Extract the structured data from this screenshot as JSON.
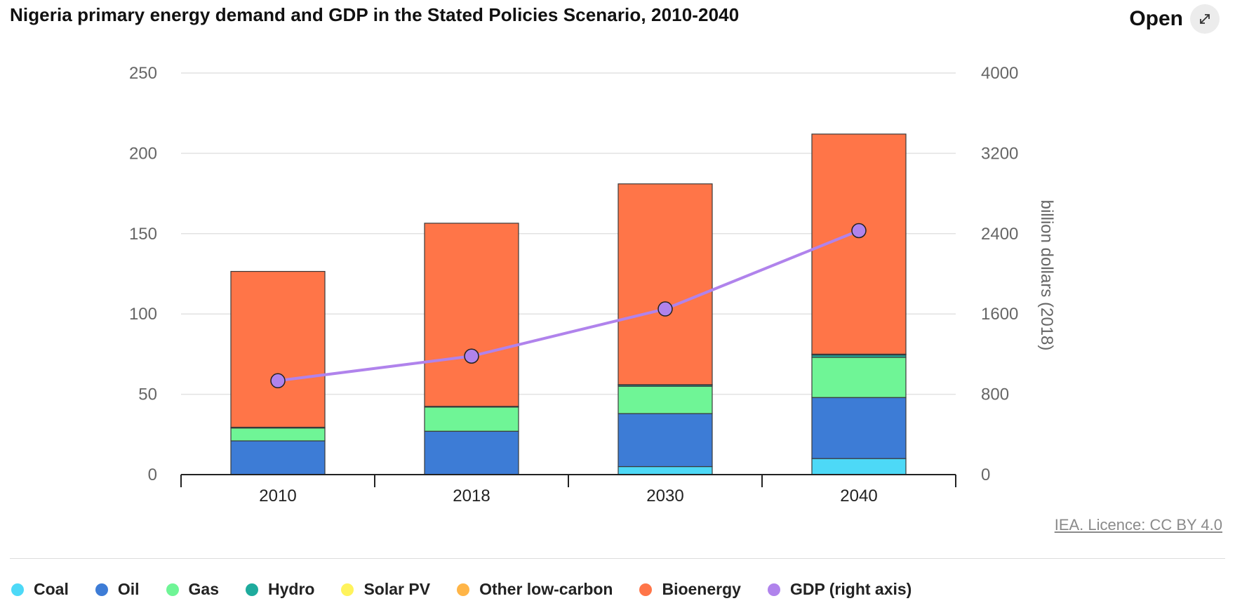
{
  "header": {
    "title": "Nigeria primary energy demand and GDP in the Stated Policies Scenario, 2010-2040",
    "open_label": "Open"
  },
  "footer": {
    "licence": "IEA. Licence: CC BY 4.0"
  },
  "legend": [
    {
      "label": "Coal",
      "color": "#4dd9f7"
    },
    {
      "label": "Oil",
      "color": "#3d7cd6"
    },
    {
      "label": "Gas",
      "color": "#6ff596"
    },
    {
      "label": "Hydro",
      "color": "#1eab9d"
    },
    {
      "label": "Solar PV",
      "color": "#fff35c"
    },
    {
      "label": "Other low-carbon",
      "color": "#ffb547"
    },
    {
      "label": "Bioenergy",
      "color": "#ff7548"
    },
    {
      "label": "GDP (right axis)",
      "color": "#b083ec"
    }
  ],
  "chart_data": {
    "type": "bar",
    "stacked": true,
    "title": "Nigeria primary energy demand and GDP in the Stated Policies Scenario, 2010-2040",
    "categories": [
      "2010",
      "2018",
      "2030",
      "2040"
    ],
    "y_ticks": [
      "0",
      "50",
      "100",
      "150",
      "200",
      "250"
    ],
    "y2_ticks": [
      "0",
      "800",
      "1600",
      "2400",
      "3200",
      "4000"
    ],
    "ylim": [
      0,
      250
    ],
    "y2lim": [
      0,
      4000
    ],
    "y2label": "billion dollars (2018)",
    "series": [
      {
        "name": "Coal",
        "color": "#4dd9f7",
        "values": [
          0,
          0,
          5,
          10
        ]
      },
      {
        "name": "Oil",
        "color": "#3d7cd6",
        "values": [
          21,
          27,
          33,
          38
        ]
      },
      {
        "name": "Gas",
        "color": "#6ff596",
        "values": [
          8,
          15,
          17,
          25
        ]
      },
      {
        "name": "Hydro",
        "color": "#1eab9d",
        "values": [
          0.5,
          0.5,
          0.8,
          1.5
        ]
      },
      {
        "name": "Solar PV",
        "color": "#fff35c",
        "values": [
          0,
          0,
          0.1,
          0.3
        ]
      },
      {
        "name": "Other low-carbon",
        "color": "#ffb547",
        "values": [
          0,
          0,
          0.1,
          0.2
        ]
      },
      {
        "name": "Bioenergy",
        "color": "#ff7548",
        "values": [
          97,
          114,
          125,
          137
        ]
      }
    ],
    "line_series": {
      "name": "GDP (right axis)",
      "axis": "right",
      "color": "#b083ec",
      "values": [
        935,
        1180,
        1650,
        2430
      ]
    }
  }
}
